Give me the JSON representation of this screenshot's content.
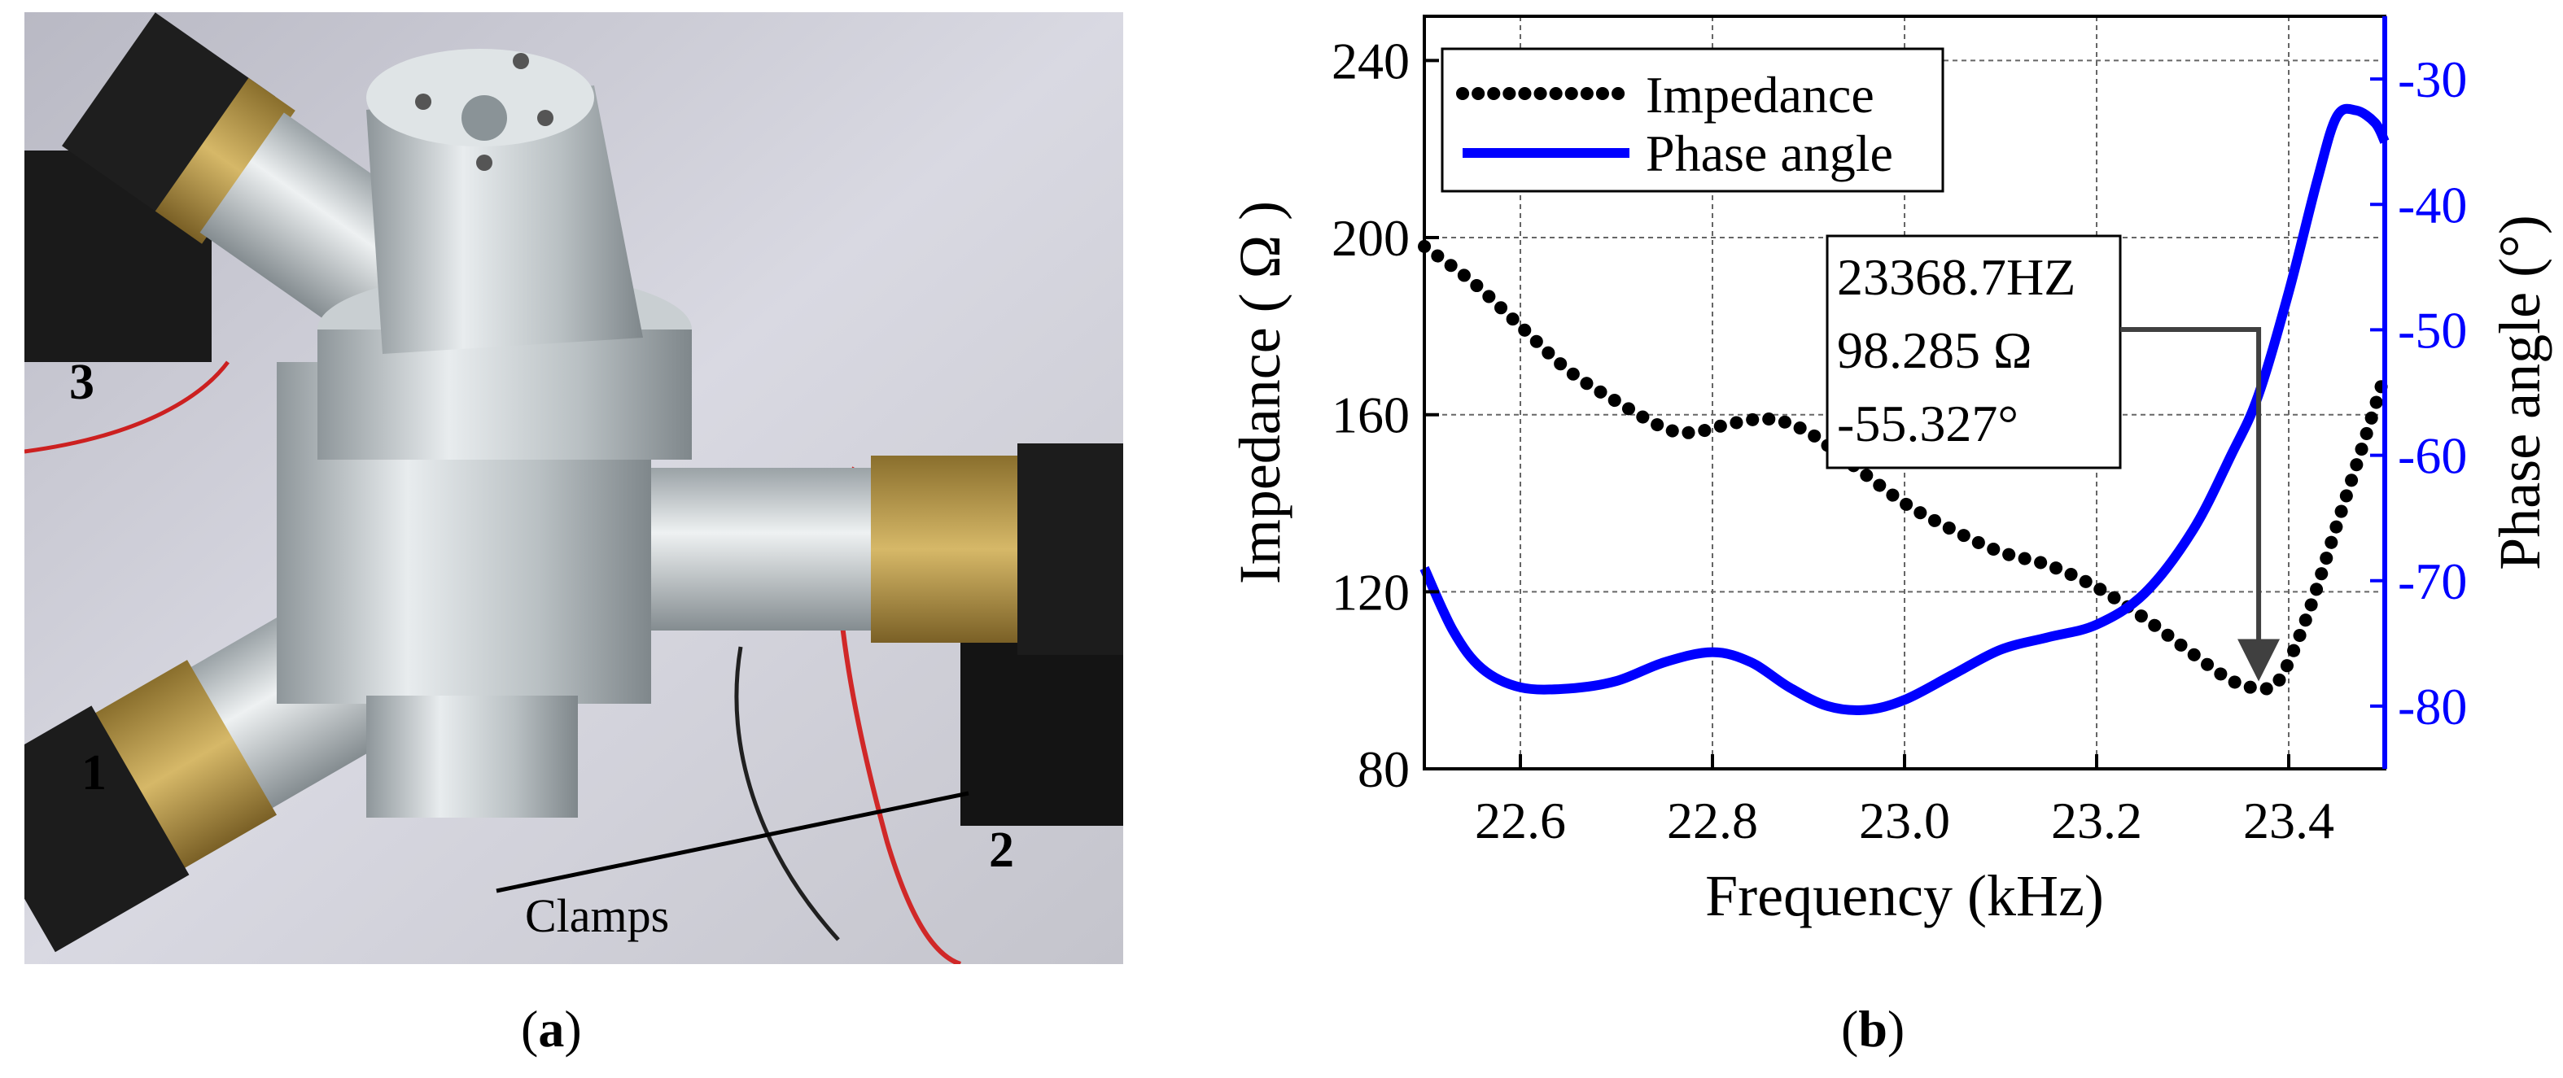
{
  "photo": {
    "labels": {
      "arm1": "1",
      "arm2": "2",
      "arm3": "3",
      "clamps": "Clamps"
    }
  },
  "captions": {
    "a": "a",
    "b": "b"
  },
  "colors": {
    "impedance": "#000000",
    "phase": "#0000ff",
    "annotation_arrow": "#404040"
  },
  "chart_data": {
    "type": "line",
    "xlabel": "Frequency (kHz)",
    "ylabel_left": "Impedance ( Ω )",
    "ylabel_right": "Phase angle (°)",
    "xlim": [
      22.5,
      23.5
    ],
    "ylim_left": [
      80,
      250
    ],
    "ylim_right": [
      -85,
      -25
    ],
    "xticks": [
      22.6,
      22.8,
      23.0,
      23.2,
      23.4
    ],
    "xtick_labels": [
      "22.6",
      "22.8",
      "23.0",
      "23.2",
      "23.4"
    ],
    "yticks_left": [
      80,
      120,
      160,
      200,
      240
    ],
    "ytick_labels_left": [
      "80",
      "120",
      "160",
      "200",
      "240"
    ],
    "yticks_right": [
      -80,
      -70,
      -60,
      -50,
      -40,
      -30
    ],
    "ytick_labels_right": [
      "-80",
      "-70",
      "-60",
      "-50",
      "-40",
      "-30"
    ],
    "grid": true,
    "legend_position": "top-left",
    "series": [
      {
        "name": "Impedance",
        "axis": "left",
        "style": "dotted",
        "x": [
          22.5,
          22.55,
          22.6,
          22.65,
          22.7,
          22.75,
          22.78,
          22.82,
          22.86,
          22.9,
          22.95,
          23.0,
          23.05,
          23.1,
          23.15,
          23.2,
          23.25,
          23.3,
          23.34,
          23.368,
          23.39,
          23.42,
          23.45,
          23.48,
          23.5
        ],
        "y": [
          198,
          190,
          180,
          170,
          163,
          157,
          156,
          158,
          159,
          156,
          148,
          140,
          134,
          129,
          126,
          121,
          114,
          106,
          100,
          98.3,
          100,
          115,
          135,
          155,
          169
        ]
      },
      {
        "name": "Phase angle",
        "axis": "right",
        "style": "solid",
        "x": [
          22.5,
          22.53,
          22.56,
          22.6,
          22.65,
          22.7,
          22.75,
          22.8,
          22.84,
          22.88,
          22.92,
          22.96,
          23.0,
          23.05,
          23.1,
          23.15,
          23.2,
          23.25,
          23.3,
          23.34,
          23.368,
          23.4,
          23.43,
          23.45,
          23.47,
          23.49,
          23.5
        ],
        "y": [
          -69,
          -74,
          -77,
          -78.5,
          -78.6,
          -78,
          -76.5,
          -75.7,
          -76.5,
          -78.5,
          -80,
          -80.3,
          -79.5,
          -77.5,
          -75.5,
          -74.5,
          -73.5,
          -71,
          -66,
          -60,
          -55.3,
          -47,
          -38,
          -33,
          -32.5,
          -33.5,
          -35
        ]
      }
    ],
    "annotation": {
      "lines": [
        "23368.7HZ",
        "98.285 Ω",
        "-55.327°"
      ],
      "x": 23.3687,
      "impedance": 98.285,
      "phase": -55.327
    }
  }
}
